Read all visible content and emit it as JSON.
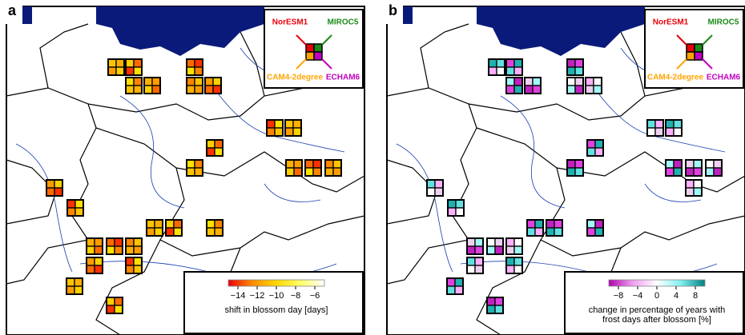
{
  "panels": [
    {
      "label": "a",
      "inset": {
        "top_left": "NorESM1",
        "top_right": "MIROC5",
        "bottom_left": "CAM4-2degree",
        "bottom_right": "ECHAM6"
      },
      "colorbar": {
        "ticks": [
          {
            "value": -14,
            "label": "−14"
          },
          {
            "value": -12,
            "label": "−12"
          },
          {
            "value": -10,
            "label": "−10"
          },
          {
            "value": -8,
            "label": "−8"
          },
          {
            "value": -6,
            "label": "−6"
          }
        ],
        "lim": [
          -15,
          -5
        ],
        "colors": [
          "#e8000b",
          "#ff8c00",
          "#ffd700",
          "#ffff66",
          "#ffffff"
        ],
        "label": "shift in blossom day [days]"
      }
    },
    {
      "label": "b",
      "inset": {
        "top_left": "NorESM1",
        "top_right": "MIROC5",
        "bottom_left": "CAM4-2degree",
        "bottom_right": "ECHAM6"
      },
      "colorbar": {
        "ticks": [
          {
            "value": -8,
            "label": "−8"
          },
          {
            "value": -4,
            "label": "−4"
          },
          {
            "value": 0,
            "label": "0"
          },
          {
            "value": 4,
            "label": "4"
          },
          {
            "value": 8,
            "label": "8"
          }
        ],
        "lim": [
          -10,
          10
        ],
        "colors": [
          "#b000b0",
          "#f0a0f0",
          "#ffffff",
          "#80f0f0",
          "#008080"
        ],
        "label": "change in percentage of years with frost days after blossom [%]"
      }
    }
  ]
}
